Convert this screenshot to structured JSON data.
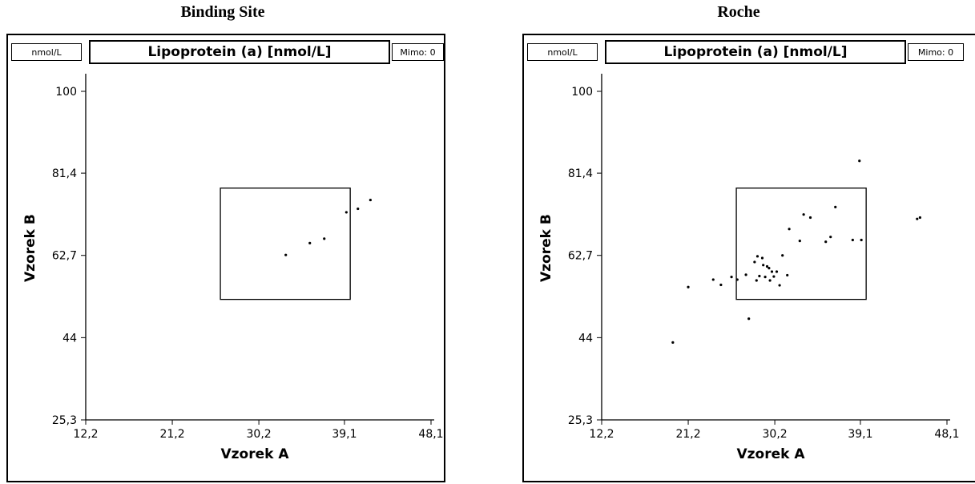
{
  "chart_data": [
    {
      "type": "scatter",
      "title": "Binding Site",
      "header_unit": "nmol/L",
      "header_title": "Lipoprotein (a) [nmol/L]",
      "header_mimo": "Mimo: 0",
      "xlabel": "Vzorek A",
      "ylabel": "Vzorek B",
      "xlim": [
        12.2,
        52.0
      ],
      "ylim": [
        25.3,
        103.0
      ],
      "xticks": [
        12.2,
        21.2,
        30.2,
        39.1,
        48.1
      ],
      "xtick_labels": [
        "12,2",
        "21,2",
        "30,2",
        "39,1",
        "48,1"
      ],
      "yticks": [
        25.3,
        44.0,
        62.7,
        81.4,
        100.0
      ],
      "ytick_labels": [
        "25,3",
        "44",
        "62,7",
        "81,4",
        "100"
      ],
      "target_box": {
        "x": [
          26.2,
          39.7
        ],
        "y": [
          52.7,
          78.0
        ]
      },
      "points": [
        {
          "x": 33.0,
          "y": 62.8
        },
        {
          "x": 35.5,
          "y": 65.5
        },
        {
          "x": 37.0,
          "y": 66.5
        },
        {
          "x": 39.3,
          "y": 72.5
        },
        {
          "x": 40.5,
          "y": 73.3
        },
        {
          "x": 41.8,
          "y": 75.3
        }
      ]
    },
    {
      "type": "scatter",
      "title": "Roche",
      "header_unit": "nmol/L",
      "header_title": "Lipoprotein (a) [nmol/L]",
      "header_mimo": "Mimo: 0",
      "xlabel": "Vzorek A",
      "ylabel": "Vzorek B",
      "xlim": [
        12.2,
        52.0
      ],
      "ylim": [
        25.3,
        103.0
      ],
      "xticks": [
        12.2,
        21.2,
        30.2,
        39.1,
        48.1
      ],
      "xtick_labels": [
        "12,2",
        "21,2",
        "30,2",
        "39,1",
        "48,1"
      ],
      "yticks": [
        25.3,
        44.0,
        62.7,
        81.4,
        100.0
      ],
      "ytick_labels": [
        "25,3",
        "44",
        "62,7",
        "81,4",
        "100"
      ],
      "target_box": {
        "x": [
          26.2,
          39.7
        ],
        "y": [
          52.7,
          78.0
        ]
      },
      "points": [
        {
          "x": 19.6,
          "y": 42.9
        },
        {
          "x": 21.2,
          "y": 55.5
        },
        {
          "x": 23.8,
          "y": 57.2
        },
        {
          "x": 24.6,
          "y": 56.0
        },
        {
          "x": 25.7,
          "y": 57.8
        },
        {
          "x": 26.3,
          "y": 57.2
        },
        {
          "x": 27.2,
          "y": 58.3
        },
        {
          "x": 27.5,
          "y": 48.3
        },
        {
          "x": 28.1,
          "y": 61.2
        },
        {
          "x": 28.3,
          "y": 57.0
        },
        {
          "x": 28.4,
          "y": 62.5
        },
        {
          "x": 28.6,
          "y": 58.0
        },
        {
          "x": 28.9,
          "y": 62.1
        },
        {
          "x": 29.0,
          "y": 60.5
        },
        {
          "x": 29.2,
          "y": 57.8
        },
        {
          "x": 29.4,
          "y": 60.2
        },
        {
          "x": 29.6,
          "y": 59.8
        },
        {
          "x": 29.7,
          "y": 57.0
        },
        {
          "x": 29.9,
          "y": 59.0
        },
        {
          "x": 30.1,
          "y": 57.9
        },
        {
          "x": 30.4,
          "y": 59.0
        },
        {
          "x": 30.7,
          "y": 55.9
        },
        {
          "x": 31.0,
          "y": 62.7
        },
        {
          "x": 31.5,
          "y": 58.2
        },
        {
          "x": 31.7,
          "y": 68.7
        },
        {
          "x": 32.8,
          "y": 66.0
        },
        {
          "x": 33.2,
          "y": 72.0
        },
        {
          "x": 33.9,
          "y": 71.3
        },
        {
          "x": 35.5,
          "y": 65.8
        },
        {
          "x": 36.0,
          "y": 66.9
        },
        {
          "x": 36.5,
          "y": 73.7
        },
        {
          "x": 38.3,
          "y": 66.2
        },
        {
          "x": 39.2,
          "y": 66.2
        },
        {
          "x": 39.0,
          "y": 84.2
        },
        {
          "x": 45.0,
          "y": 71.0
        },
        {
          "x": 45.3,
          "y": 71.3
        }
      ]
    }
  ]
}
